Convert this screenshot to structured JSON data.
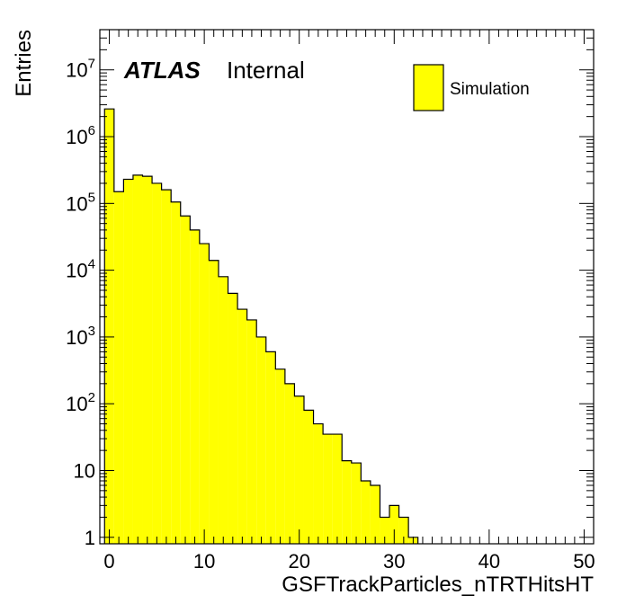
{
  "chart_data": {
    "type": "bar",
    "label_main": "ATLAS",
    "label_sub": "Internal",
    "xlabel": "GSFTrackParticles_nTRTHitsHT",
    "ylabel": "Entries",
    "xlim": [
      -1,
      51
    ],
    "ylim": [
      0.8,
      40000000
    ],
    "y_scale": "log",
    "x_ticks": [
      "0",
      "10",
      "20",
      "30",
      "40",
      "50"
    ],
    "y_ticks": [
      {
        "base": "1",
        "exp": ""
      },
      {
        "base": "10",
        "exp": ""
      },
      {
        "base": "10",
        "exp": "2"
      },
      {
        "base": "10",
        "exp": "3"
      },
      {
        "base": "10",
        "exp": "4"
      },
      {
        "base": "10",
        "exp": "5"
      },
      {
        "base": "10",
        "exp": "6"
      },
      {
        "base": "10",
        "exp": "7"
      }
    ],
    "legend_position": "top-right",
    "series": [
      {
        "name": "Simulation",
        "color": "#ffff00",
        "bins": [
          {
            "x": 0,
            "value": 2600000
          },
          {
            "x": 1,
            "value": 150000
          },
          {
            "x": 2,
            "value": 230000
          },
          {
            "x": 3,
            "value": 265000
          },
          {
            "x": 4,
            "value": 255000
          },
          {
            "x": 5,
            "value": 200000
          },
          {
            "x": 6,
            "value": 160000
          },
          {
            "x": 7,
            "value": 105000
          },
          {
            "x": 8,
            "value": 65000
          },
          {
            "x": 9,
            "value": 40000
          },
          {
            "x": 10,
            "value": 25000
          },
          {
            "x": 11,
            "value": 14000
          },
          {
            "x": 12,
            "value": 8000
          },
          {
            "x": 13,
            "value": 4500
          },
          {
            "x": 14,
            "value": 2600
          },
          {
            "x": 15,
            "value": 1800
          },
          {
            "x": 16,
            "value": 1000
          },
          {
            "x": 17,
            "value": 600
          },
          {
            "x": 18,
            "value": 330
          },
          {
            "x": 19,
            "value": 200
          },
          {
            "x": 20,
            "value": 130
          },
          {
            "x": 21,
            "value": 80
          },
          {
            "x": 22,
            "value": 50
          },
          {
            "x": 23,
            "value": 35
          },
          {
            "x": 24,
            "value": 35
          },
          {
            "x": 25,
            "value": 14
          },
          {
            "x": 26,
            "value": 13
          },
          {
            "x": 27,
            "value": 7
          },
          {
            "x": 28,
            "value": 6
          },
          {
            "x": 29,
            "value": 2
          },
          {
            "x": 30,
            "value": 3
          },
          {
            "x": 31,
            "value": 2
          },
          {
            "x": 32,
            "value": 1
          }
        ]
      }
    ]
  }
}
